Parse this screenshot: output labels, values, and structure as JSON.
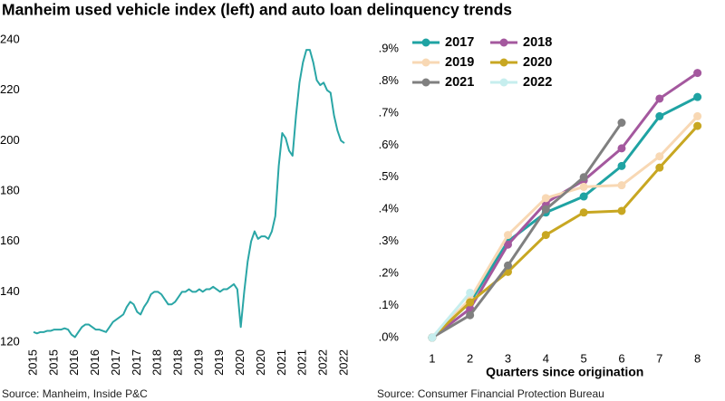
{
  "title": "Manheim used vehicle index (left) and auto loan delinquency trends",
  "chart_data": [
    {
      "type": "line",
      "source": "Source: Manheim, Inside P&C",
      "categories": [
        "2015",
        null,
        null,
        null,
        null,
        null,
        "2015",
        null,
        null,
        null,
        null,
        null,
        "2016",
        null,
        null,
        null,
        null,
        null,
        "2016",
        null,
        null,
        null,
        null,
        null,
        "2017",
        null,
        null,
        null,
        null,
        null,
        "2017",
        null,
        null,
        null,
        null,
        null,
        "2018",
        null,
        null,
        null,
        null,
        null,
        "2018",
        null,
        null,
        null,
        null,
        null,
        "2019",
        null,
        null,
        null,
        null,
        null,
        "2019",
        null,
        null,
        null,
        null,
        null,
        "2020",
        null,
        null,
        null,
        null,
        null,
        "2020",
        null,
        null,
        null,
        null,
        null,
        "2021",
        null,
        null,
        null,
        null,
        null,
        "2021",
        null,
        null,
        null,
        null,
        null,
        "2022",
        null,
        null,
        null,
        null,
        null,
        "2022"
      ],
      "values": [
        124,
        123.5,
        124,
        124,
        124.5,
        124.5,
        125,
        125,
        125,
        125.5,
        125,
        123,
        122,
        124,
        126,
        127,
        127,
        126,
        125,
        125,
        124.5,
        124,
        126,
        128,
        129,
        130,
        131,
        134,
        136,
        135,
        132,
        131,
        134,
        136,
        139,
        140,
        140,
        139,
        137,
        135,
        135,
        136,
        138,
        140,
        140,
        141,
        140,
        140,
        141,
        140,
        141,
        141,
        142,
        141,
        140,
        141,
        141,
        142,
        143,
        141,
        126,
        140,
        152,
        160,
        164,
        161,
        162,
        162,
        161,
        164,
        170,
        190,
        203,
        201,
        196,
        194,
        210,
        223,
        231,
        236,
        236,
        231,
        224,
        222,
        223,
        220,
        219,
        210,
        204,
        200,
        199
      ],
      "color": "#2aa6a6",
      "ylim": [
        120,
        245
      ],
      "yticks": [
        120,
        140,
        160,
        180,
        200,
        220,
        240
      ]
    },
    {
      "type": "line",
      "source": "Source: Consumer Financial Protection Bureau",
      "xlabel": "Quarters since origination",
      "x": [
        1,
        2,
        3,
        4,
        5,
        6,
        7,
        8
      ],
      "xlim": [
        0.55,
        8.2
      ],
      "xticks": [
        1,
        2,
        3,
        4,
        5,
        6,
        7,
        8
      ],
      "ylim": [
        0,
        0.9
      ],
      "yticks": [
        {
          "value": 0,
          "label": ".0%"
        },
        {
          "value": 0.1,
          "label": ".1%"
        },
        {
          "value": 0.2,
          "label": ".2%"
        },
        {
          "value": 0.3,
          "label": ".3%"
        },
        {
          "value": 0.4,
          "label": ".4%"
        },
        {
          "value": 0.5,
          "label": ".5%"
        },
        {
          "value": 0.6,
          "label": ".6%"
        },
        {
          "value": 0.7,
          "label": ".7%"
        },
        {
          "value": 0.8,
          "label": ".8%"
        },
        {
          "value": 0.9,
          "label": ".9%"
        }
      ],
      "legend": "upper left",
      "series": [
        {
          "name": "2017",
          "color": "#1fa3a3",
          "values": [
            0,
            0.11,
            0.3,
            0.39,
            0.44,
            0.535,
            0.69,
            0.75
          ]
        },
        {
          "name": "2018",
          "color": "#a4589e",
          "values": [
            0,
            0.09,
            0.29,
            0.42,
            0.49,
            0.59,
            0.745,
            0.825
          ]
        },
        {
          "name": "2019",
          "color": "#f8d8b4",
          "values": [
            0,
            0.12,
            0.32,
            0.435,
            0.47,
            0.475,
            0.565,
            0.69
          ]
        },
        {
          "name": "2020",
          "color": "#c8a722",
          "values": [
            0,
            0.11,
            0.205,
            0.32,
            0.39,
            0.395,
            0.53,
            0.66
          ]
        },
        {
          "name": "2021",
          "color": "#808080",
          "values": [
            0,
            0.07,
            0.225,
            0.4,
            0.5,
            0.67,
            null,
            null
          ]
        },
        {
          "name": "2022",
          "color": "#c6eeee",
          "values": [
            0,
            0.14,
            null,
            null,
            null,
            null,
            null,
            null
          ]
        }
      ]
    }
  ]
}
